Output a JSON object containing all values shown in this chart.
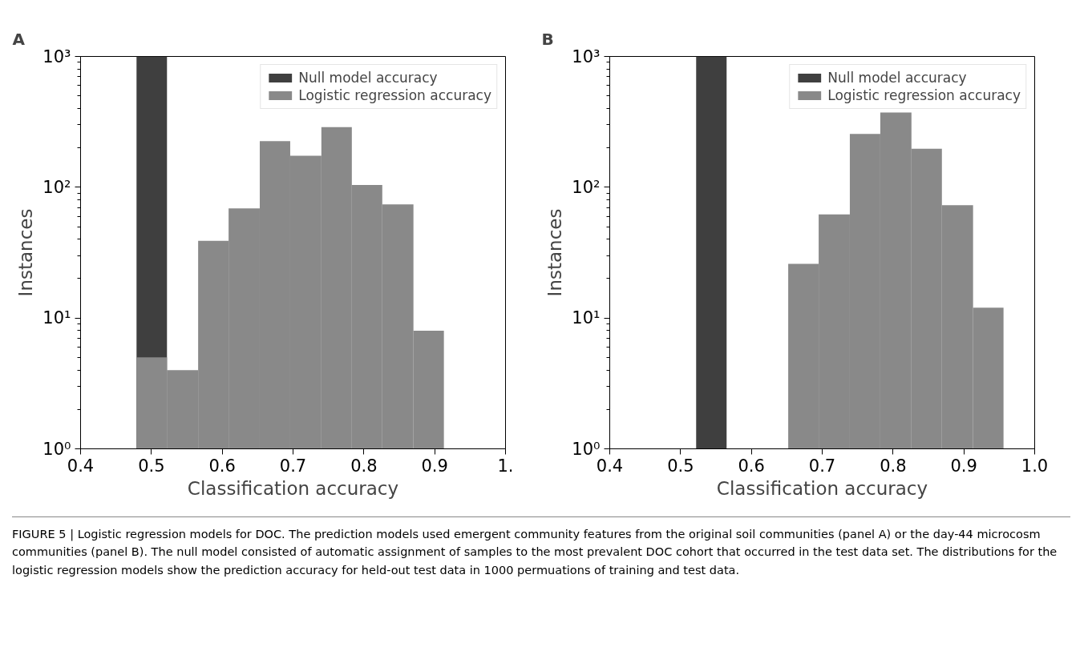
{
  "chart_data": [
    {
      "type": "histogram",
      "xlabel": "Classification accuracy",
      "ylabel": "Instances",
      "log": "y",
      "grid": false,
      "legend": "top right",
      "xlim": [
        0.4,
        1.0
      ],
      "xticks": [
        0.4,
        0.5,
        0.6,
        0.7,
        0.8,
        0.9,
        {
          "value": 1.0,
          "label": "1."
        }
      ],
      "ylim": [
        1,
        1000
      ],
      "yticks": [
        {
          "value": 1,
          "label": "10⁰"
        },
        {
          "value": 10,
          "label": "10¹"
        },
        {
          "value": 100,
          "label": "10²"
        },
        {
          "value": 1000,
          "label": "10³"
        }
      ],
      "annotations": [
        "A",
        "FIGURE 5 | Logistic regression models for DOC. The prediction models used emergent community features from the original soil communities (panel A) or the day-44 microcosm communities (panel B). The null model consisted of automatic assignment of samples to the most prevalent DOC cohort that occurred in the test data set. The distributions for the logistic regression models show the prediction accuracy for held-out test data in 1000 permuations of training and test data."
      ],
      "bins": [
        0.479,
        0.522,
        0.566,
        0.609,
        0.653,
        0.696,
        0.74,
        0.783,
        0.826,
        0.87,
        0.913
      ],
      "series": [
        {
          "name": "Null model accuracy",
          "color": "#3f3f3f",
          "values": [
            1000,
            null,
            null,
            null,
            null,
            null,
            null,
            null,
            null,
            null
          ]
        },
        {
          "name": "Logistic regression accuracy",
          "color": "#898989",
          "values": [
            5,
            4,
            39,
            69,
            225,
            174,
            288,
            104,
            74,
            8
          ]
        }
      ]
    },
    {
      "type": "histogram",
      "xlabel": "Classification accuracy",
      "ylabel": "Instances",
      "log": "y",
      "grid": false,
      "legend": "top right",
      "xlim": [
        0.4,
        1.0
      ],
      "xticks": [
        0.4,
        0.5,
        0.6,
        0.7,
        0.8,
        0.9,
        {
          "value": 1.0,
          "label": "1.0"
        }
      ],
      "ylim": [
        1,
        1000
      ],
      "yticks": [
        {
          "value": 1,
          "label": "10⁰"
        },
        {
          "value": 10,
          "label": "10¹"
        },
        {
          "value": 100,
          "label": "10²"
        },
        {
          "value": 1000,
          "label": "10³"
        }
      ],
      "annotations": [
        "B"
      ],
      "bins": [
        0.522,
        0.565,
        0.652,
        0.695,
        0.739,
        0.782,
        0.826,
        0.869,
        0.913,
        0.956
      ],
      "series": [
        {
          "name": "Null model accuracy",
          "color": "#3f3f3f",
          "values": [
            1000,
            null,
            null,
            null,
            null,
            null,
            null,
            null,
            null
          ]
        },
        {
          "name": "Logistic regression accuracy",
          "color": "#898989",
          "values": [
            null,
            null,
            26,
            62,
            256,
            373,
            197,
            73,
            12
          ]
        }
      ]
    }
  ]
}
